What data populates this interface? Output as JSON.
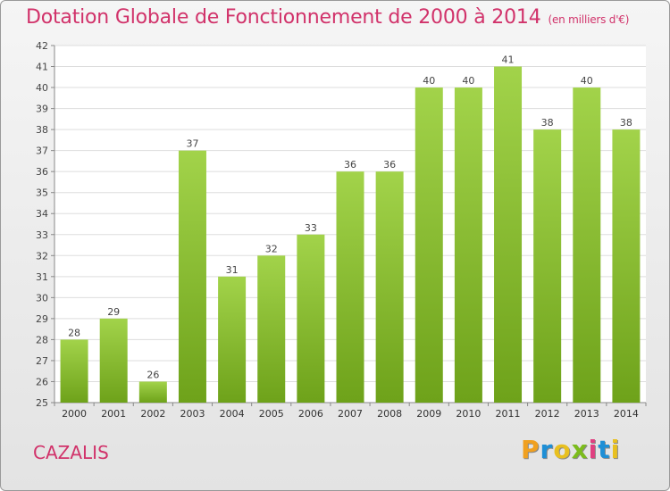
{
  "title": "Dotation Globale de Fonctionnement de 2000 à 2014",
  "unit": "(en milliers d'€)",
  "commune": "CAZALIS",
  "brand": {
    "letters": [
      "P",
      "r",
      "o",
      "x",
      "i",
      "t",
      "i"
    ],
    "colors": [
      "#f0a020",
      "#1e8fd6",
      "#e8c020",
      "#7cbc1c",
      "#e04080",
      "#1e8fd6",
      "#e8c020"
    ]
  },
  "colors": {
    "bar_light": "#a2d34a",
    "bar_dark": "#6ea21a",
    "title": "#d1326a",
    "grid": "#dddddd"
  },
  "chart_data": {
    "type": "bar",
    "categories": [
      "2000",
      "2001",
      "2002",
      "2003",
      "2004",
      "2005",
      "2006",
      "2007",
      "2008",
      "2009",
      "2010",
      "2011",
      "2012",
      "2013",
      "2014"
    ],
    "values": [
      28,
      29,
      26,
      37,
      31,
      32,
      33,
      36,
      36,
      40,
      40,
      41,
      38,
      40,
      38
    ],
    "ylim": [
      25,
      42
    ],
    "yticks": [
      25,
      26,
      27,
      28,
      29,
      30,
      31,
      32,
      33,
      34,
      35,
      36,
      37,
      38,
      39,
      40,
      41,
      42
    ],
    "grid": true,
    "data_labels": true
  }
}
